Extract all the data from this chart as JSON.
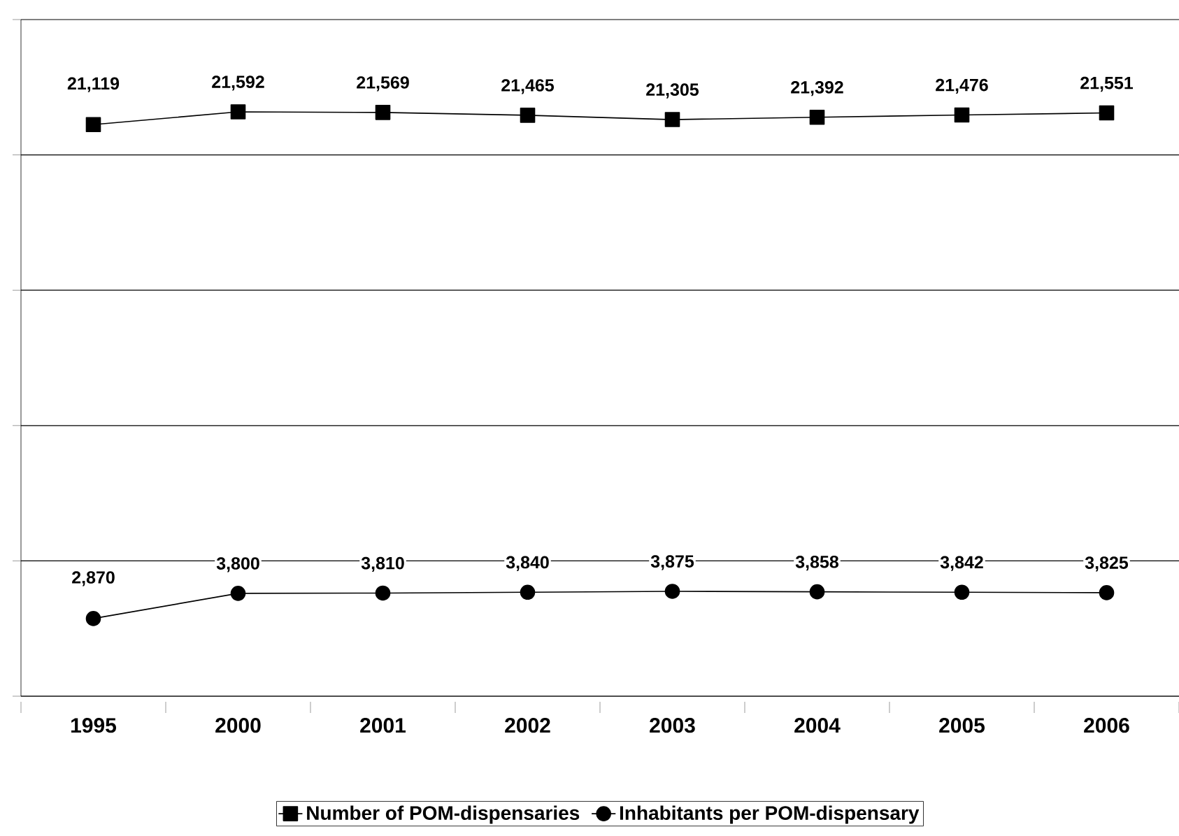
{
  "chart_data": {
    "type": "line",
    "categories": [
      "1995",
      "2000",
      "2001",
      "2002",
      "2003",
      "2004",
      "2005",
      "2006"
    ],
    "series": [
      {
        "name": "Number of POM-dispensaries",
        "color": "#000000",
        "marker": "square",
        "values": [
          21119,
          21592,
          21569,
          21465,
          21305,
          21392,
          21476,
          21551
        ],
        "value_labels": [
          "21,119",
          "21,592",
          "21,569",
          "21,465",
          "21,305",
          "21,392",
          "21,476",
          "21,551"
        ]
      },
      {
        "name": "Inhabitants per POM-dispensary",
        "color": "#000000",
        "marker": "circle",
        "values": [
          2870,
          3800,
          3810,
          3840,
          3875,
          3858,
          3842,
          3825
        ],
        "value_labels": [
          "2,870",
          "3,800",
          "3,810",
          "3,840",
          "3,875",
          "3,858",
          "3,842",
          "3,825"
        ]
      }
    ],
    "ylim": [
      0,
      25000
    ],
    "yticks": [
      {
        "value": 0,
        "label": null
      },
      {
        "value": 5000,
        "label": null
      },
      {
        "value": 10000,
        "label": null
      },
      {
        "value": 15000,
        "label": null
      },
      {
        "value": 20000,
        "label": null
      },
      {
        "value": 25000,
        "label": null
      }
    ],
    "tick_labels": "x",
    "grid": "y",
    "legend": "bottom",
    "line_style": "solid"
  }
}
